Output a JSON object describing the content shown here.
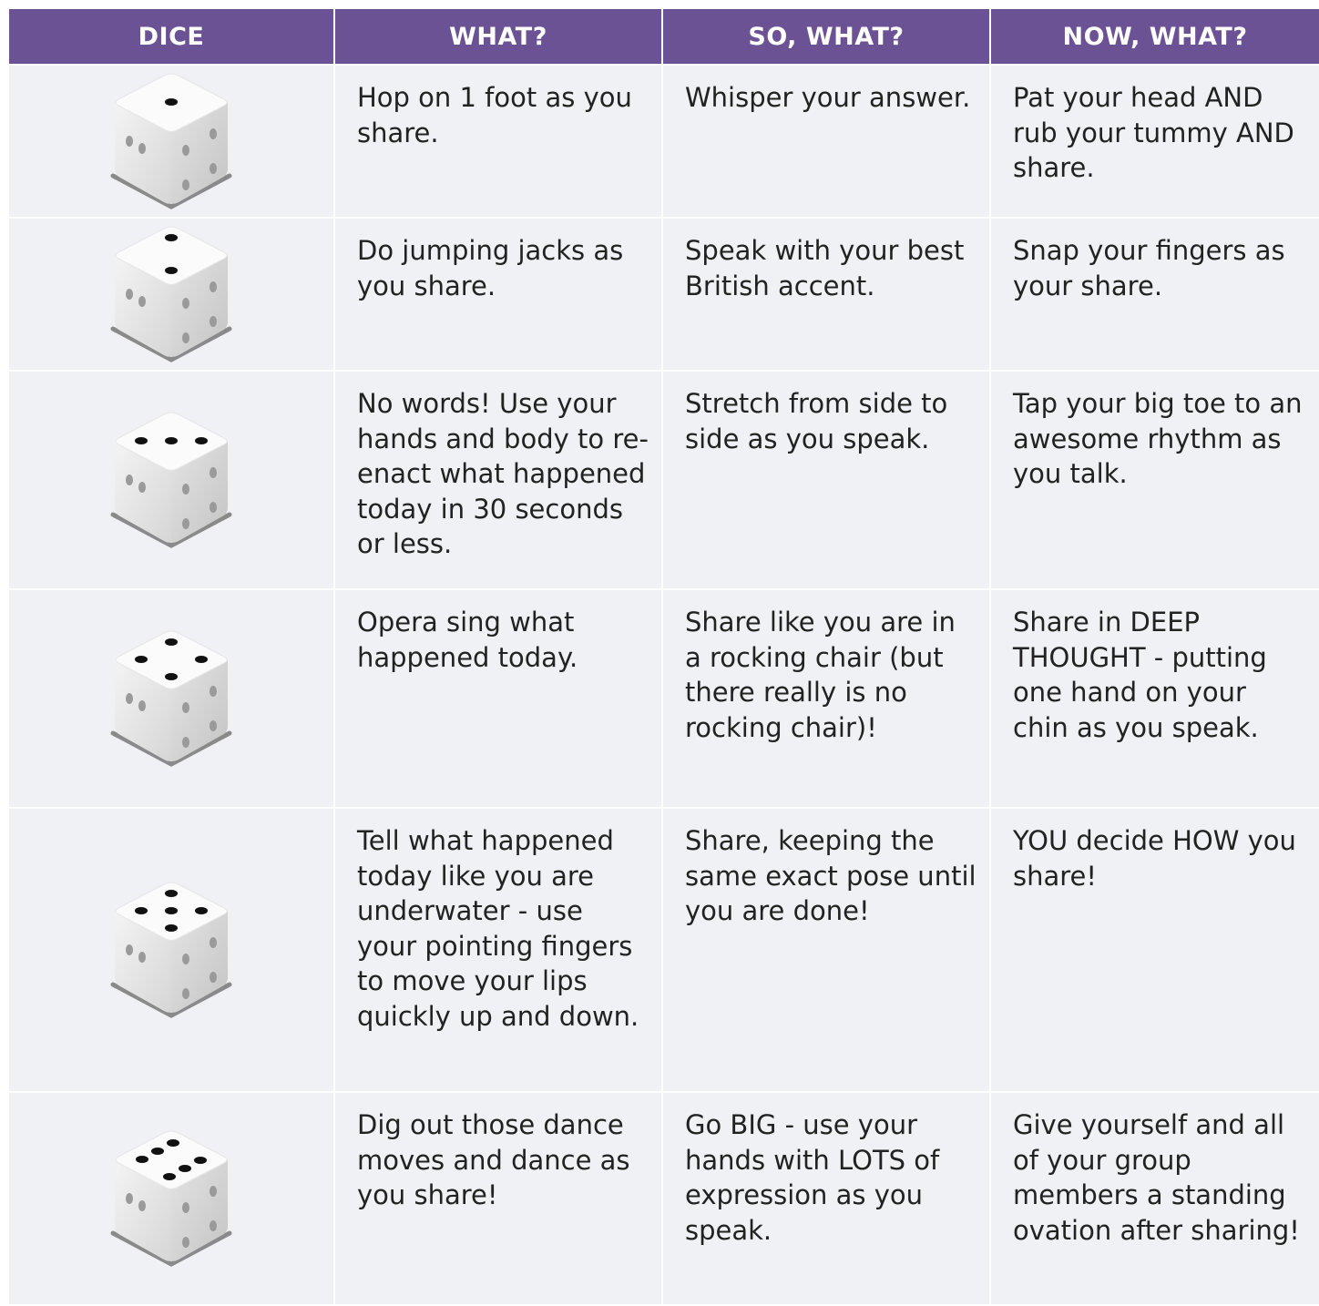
{
  "header": {
    "columns": [
      "DICE",
      "WHAT?",
      "SO, WHAT?",
      "NOW, WHAT?"
    ]
  },
  "rows": [
    [
      "Hop on 1 foot as you share.",
      "Whisper your answer.",
      "Pat your head AND rub your tummy AND share."
    ],
    [
      "Do jumping jacks as you share.",
      "Speak with your best British accent.",
      "Snap your fingers as your share."
    ],
    [
      "No words! Use your hands and body to re-enact what happened today in 30 seconds or less.",
      "Stretch from side to side as you speak.",
      "Tap your big toe to an awesome rhythm as you talk."
    ],
    [
      "Opera sing what happened today.",
      "Share like you are in a rocking chair (but there really is no rocking chair)!",
      "Share in DEEP THOUGHT - putting one hand on your chin as you speak."
    ],
    [
      "Tell what happened today like you are underwater - use your pointing fingers to move your lips quickly up and down.",
      "Share, keeping the same exact pose until you are done!",
      "YOU decide HOW you share!"
    ],
    [
      "Dig out those dance moves and dance as you share!",
      "Go BIG - use your hands with LOTS of expression as you speak.",
      "Give yourself and all of your group members a standing ovation after sharing!"
    ]
  ]
}
